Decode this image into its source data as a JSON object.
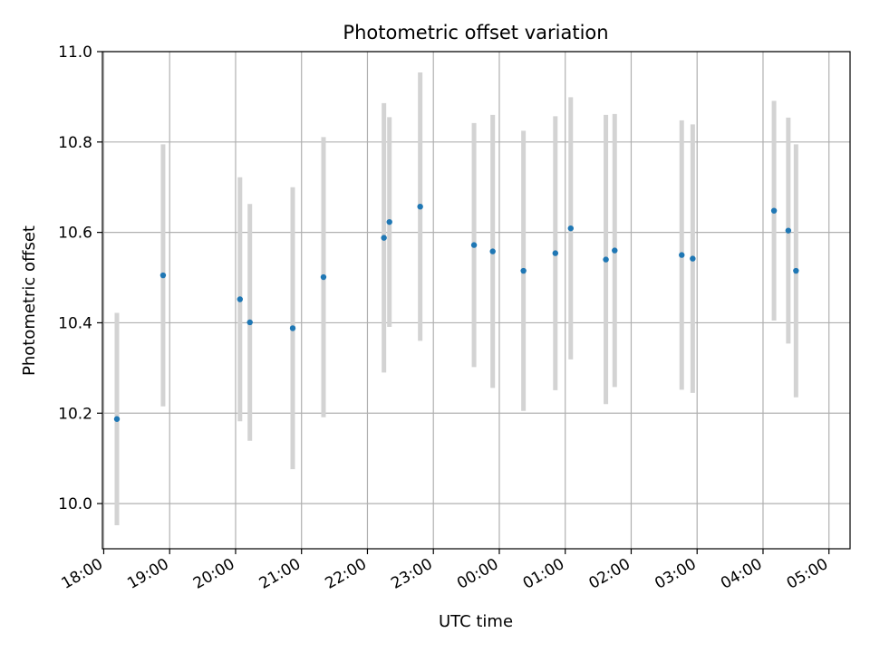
{
  "chart_data": {
    "type": "scatter",
    "title": "Photometric offset variation",
    "xlabel": "UTC time",
    "ylabel": "Photometric offset",
    "x_axis_kind": "time (hours since 18:00 UTC)",
    "xlim": [
      -0.02,
      11.32
    ],
    "ylim": [
      9.9,
      11.0
    ],
    "grid": true,
    "xticks": [
      {
        "value": 0,
        "label": "18:00"
      },
      {
        "value": 1,
        "label": "19:00"
      },
      {
        "value": 2,
        "label": "20:00"
      },
      {
        "value": 3,
        "label": "21:00"
      },
      {
        "value": 4,
        "label": "22:00"
      },
      {
        "value": 5,
        "label": "23:00"
      },
      {
        "value": 6,
        "label": "00:00"
      },
      {
        "value": 7,
        "label": "01:00"
      },
      {
        "value": 8,
        "label": "02:00"
      },
      {
        "value": 9,
        "label": "03:00"
      },
      {
        "value": 10,
        "label": "04:00"
      },
      {
        "value": 11,
        "label": "05:00"
      }
    ],
    "yticks": [
      {
        "value": 10.0,
        "label": "10.0"
      },
      {
        "value": 10.2,
        "label": "10.2"
      },
      {
        "value": 10.4,
        "label": "10.4"
      },
      {
        "value": 10.6,
        "label": "10.6"
      },
      {
        "value": 10.8,
        "label": "10.8"
      },
      {
        "value": 11.0,
        "label": "11.0"
      }
    ],
    "series": [
      {
        "marker_color": "#1f77b4",
        "errorbar_color": "#d3d3d3",
        "points": [
          {
            "t": "18:12",
            "y": 10.187,
            "err": 0.235
          },
          {
            "t": "18:54",
            "y": 10.505,
            "err": 0.29
          },
          {
            "t": "20:04",
            "y": 10.452,
            "err": 0.27
          },
          {
            "t": "20:13",
            "y": 10.401,
            "err": 0.262
          },
          {
            "t": "20:52",
            "y": 10.388,
            "err": 0.312
          },
          {
            "t": "21:20",
            "y": 10.501,
            "err": 0.31
          },
          {
            "t": "22:15",
            "y": 10.588,
            "err": 0.298
          },
          {
            "t": "22:20",
            "y": 10.623,
            "err": 0.232
          },
          {
            "t": "22:48",
            "y": 10.657,
            "err": 0.297
          },
          {
            "t": "23:37",
            "y": 10.572,
            "err": 0.27
          },
          {
            "t": "23:54",
            "y": 10.558,
            "err": 0.302
          },
          {
            "t": "00:22",
            "y": 10.515,
            "err": 0.31
          },
          {
            "t": "00:51",
            "y": 10.554,
            "err": 0.303
          },
          {
            "t": "01:05",
            "y": 10.609,
            "err": 0.29
          },
          {
            "t": "01:37",
            "y": 10.54,
            "err": 0.32
          },
          {
            "t": "01:45",
            "y": 10.56,
            "err": 0.302
          },
          {
            "t": "02:46",
            "y": 10.55,
            "err": 0.298
          },
          {
            "t": "02:56",
            "y": 10.542,
            "err": 0.297
          },
          {
            "t": "04:10",
            "y": 10.648,
            "err": 0.243
          },
          {
            "t": "04:23",
            "y": 10.604,
            "err": 0.25
          },
          {
            "t": "04:30",
            "y": 10.515,
            "err": 0.28
          }
        ]
      }
    ]
  }
}
